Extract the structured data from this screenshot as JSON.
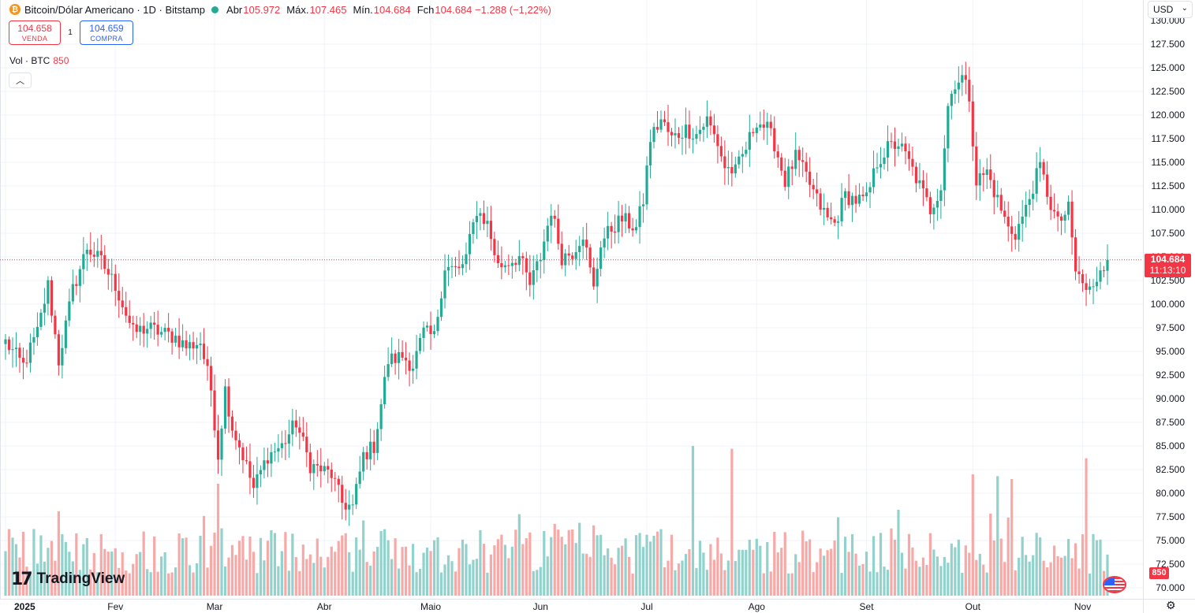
{
  "header": {
    "symbol_icon": "bitcoin-icon",
    "title": "Bitcoin/Dólar Americano · 1D · Bitstamp",
    "status_color": "#22ab94",
    "ohlc": [
      {
        "label": "Abr",
        "value": "105.972"
      },
      {
        "label": "Máx.",
        "value": "107.465"
      },
      {
        "label": "Mín.",
        "value": "104.684"
      },
      {
        "label": "Fch",
        "value": "104.684 −1.288 (−1,22%)"
      }
    ]
  },
  "trade": {
    "sell_price": "104.658",
    "sell_label": "VENDA",
    "spread": "1",
    "buy_price": "104.659",
    "buy_label": "COMPRA"
  },
  "volume_legend": {
    "label": "Vol · BTC",
    "value": "850"
  },
  "collapse_icon": "chevron-up-icon",
  "currency": {
    "label": "USD",
    "icon": "chevron-down-icon"
  },
  "last_price": {
    "value": "104.684",
    "countdown": "11:13:10"
  },
  "last_volume": "850",
  "branding": {
    "name": "TradingView",
    "icon": "tradingview-logo-icon"
  },
  "flag_icon": "us-flag-icon",
  "settings_icon": "gear-icon",
  "colors": {
    "up": "#22ab94",
    "down": "#f23645",
    "vol_up": "#92d2cc",
    "vol_down": "#f7a9a7",
    "grid": "#f0f3fa"
  },
  "chart_data": {
    "type": "candlestick",
    "title": "Bitcoin/Dólar Americano · 1D · Bitstamp",
    "interval": "1D",
    "y_axis": {
      "position": "right",
      "ylim": [
        70000,
        130000
      ],
      "ticks": [
        "70.000",
        "72.500",
        "75.000",
        "77.500",
        "80.000",
        "82.500",
        "85.000",
        "87.500",
        "90.000",
        "92.500",
        "95.000",
        "97.500",
        "100.000",
        "102.500",
        "105.000",
        "107.500",
        "110.000",
        "112.500",
        "115.000",
        "117.500",
        "120.000",
        "122.500",
        "125.000",
        "127.500"
      ]
    },
    "x_axis": {
      "ticks": [
        {
          "label": "2025",
          "day": 0
        },
        {
          "label": "Fev",
          "day": 31
        },
        {
          "label": "Mar",
          "day": 59
        },
        {
          "label": "Abr",
          "day": 90
        },
        {
          "label": "Maio",
          "day": 120
        },
        {
          "label": "Jun",
          "day": 151
        },
        {
          "label": "Jul",
          "day": 181
        },
        {
          "label": "Ago",
          "day": 212
        },
        {
          "label": "Set",
          "day": 243
        },
        {
          "label": "Out",
          "day": 273
        },
        {
          "label": "Nov",
          "day": 304
        }
      ],
      "last_day": 311
    },
    "grid": true,
    "last_price_line": 104684,
    "close_anchors": [
      [
        0,
        96000
      ],
      [
        5,
        93500
      ],
      [
        9,
        97000
      ],
      [
        12,
        102000
      ],
      [
        15,
        94000
      ],
      [
        19,
        101500
      ],
      [
        23,
        106000
      ],
      [
        27,
        104500
      ],
      [
        31,
        102000
      ],
      [
        36,
        97000
      ],
      [
        40,
        97500
      ],
      [
        44,
        97000
      ],
      [
        48,
        96500
      ],
      [
        51,
        95500
      ],
      [
        55,
        96000
      ],
      [
        58,
        91000
      ],
      [
        60,
        84000
      ],
      [
        62,
        91000
      ],
      [
        64,
        87000
      ],
      [
        67,
        84000
      ],
      [
        70,
        80500
      ],
      [
        74,
        84000
      ],
      [
        78,
        85000
      ],
      [
        82,
        87500
      ],
      [
        86,
        83000
      ],
      [
        89,
        82500
      ],
      [
        92,
        82000
      ],
      [
        95,
        79000
      ],
      [
        98,
        78500
      ],
      [
        101,
        84000
      ],
      [
        104,
        85000
      ],
      [
        108,
        94000
      ],
      [
        112,
        94500
      ],
      [
        115,
        93500
      ],
      [
        118,
        97000
      ],
      [
        121,
        96500
      ],
      [
        124,
        104000
      ],
      [
        128,
        103500
      ],
      [
        130,
        105000
      ],
      [
        133,
        110000
      ],
      [
        136,
        108500
      ],
      [
        139,
        104000
      ],
      [
        142,
        104500
      ],
      [
        145,
        105000
      ],
      [
        148,
        102000
      ],
      [
        151,
        105000
      ],
      [
        154,
        110000
      ],
      [
        157,
        105000
      ],
      [
        160,
        105500
      ],
      [
        163,
        107500
      ],
      [
        166,
        101500
      ],
      [
        168,
        106500
      ],
      [
        171,
        108000
      ],
      [
        174,
        109000
      ],
      [
        178,
        108000
      ],
      [
        180,
        111000
      ],
      [
        182,
        117500
      ],
      [
        185,
        119500
      ],
      [
        188,
        117500
      ],
      [
        192,
        118500
      ],
      [
        195,
        118000
      ],
      [
        198,
        119500
      ],
      [
        201,
        117000
      ],
      [
        203,
        114500
      ],
      [
        206,
        114000
      ],
      [
        209,
        116500
      ],
      [
        212,
        119500
      ],
      [
        215,
        118500
      ],
      [
        217,
        117000
      ],
      [
        220,
        113000
      ],
      [
        223,
        115500
      ],
      [
        226,
        113500
      ],
      [
        229,
        111000
      ],
      [
        232,
        109000
      ],
      [
        234,
        108500
      ],
      [
        237,
        111500
      ],
      [
        240,
        111000
      ],
      [
        243,
        111000
      ],
      [
        246,
        115000
      ],
      [
        249,
        116500
      ],
      [
        252,
        117000
      ],
      [
        255,
        115000
      ],
      [
        258,
        112500
      ],
      [
        261,
        110000
      ],
      [
        264,
        112500
      ],
      [
        266,
        121000
      ],
      [
        268,
        123500
      ],
      [
        270,
        124000
      ],
      [
        272,
        122000
      ],
      [
        274,
        113000
      ],
      [
        277,
        114000
      ],
      [
        280,
        111000
      ],
      [
        283,
        108000
      ],
      [
        285,
        107500
      ],
      [
        288,
        110000
      ],
      [
        290,
        112500
      ],
      [
        292,
        114500
      ],
      [
        295,
        110500
      ],
      [
        297,
        108500
      ],
      [
        300,
        110000
      ],
      [
        302,
        103500
      ],
      [
        305,
        101500
      ],
      [
        307,
        101500
      ],
      [
        309,
        104000
      ],
      [
        311,
        104684
      ]
    ],
    "volume_bars": "one bar per day beneath candles; notable spikes near Jul 14, Jul 25, Out 10, Out 17 and Nov 4"
  }
}
